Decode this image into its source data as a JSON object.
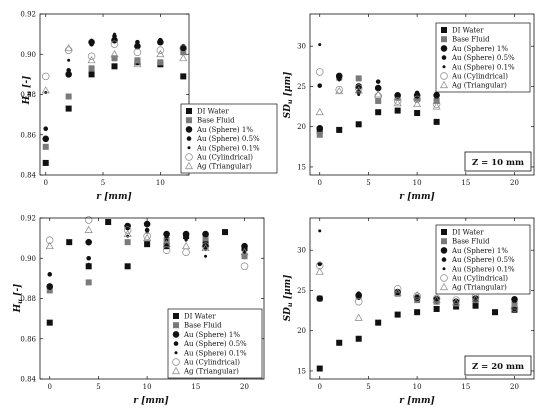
{
  "legend_entries": [
    {
      "name": "DI Water",
      "marker": "square",
      "color": "#111111"
    },
    {
      "name": "Base Fluid",
      "marker": "square",
      "color": "#7a7a7a"
    },
    {
      "name": "Au (Sphere) 1%",
      "marker": "circle-large",
      "color": "#111111"
    },
    {
      "name": "Au (Sphere) 0.5%",
      "marker": "circle-medium",
      "color": "#111111"
    },
    {
      "name": "Au (Sphere) 0.1%",
      "marker": "circle-small",
      "color": "#111111"
    },
    {
      "name": "Au (Cylindrical)",
      "marker": "circle-open",
      "color": "#888888"
    },
    {
      "name": "Ag (Triangular)",
      "marker": "triangle-open",
      "color": "#888888"
    }
  ],
  "chart_data": [
    {
      "type": "scatter",
      "title": "",
      "xlabel": "r [mm]",
      "ylabel": "H_u [-]",
      "ylabel_main": "H",
      "ylabel_sub": "u",
      "ylabel_unit": "[-]",
      "xlim": [
        -0.5,
        12.5
      ],
      "ylim": [
        0.84,
        0.92
      ],
      "xticks": [
        "0",
        "5",
        "10"
      ],
      "xtick_values": [
        0,
        5,
        10
      ],
      "yticks": [
        "0.84",
        "0.86",
        "0.88",
        "0.90",
        "0.92"
      ],
      "ytick_values": [
        0.84,
        0.86,
        0.88,
        0.9,
        0.92
      ],
      "legend_position": "lower-right",
      "annotation": "",
      "series": [
        {
          "name": "DI Water",
          "x": [
            0,
            2,
            4,
            6,
            8,
            10,
            12
          ],
          "y": [
            0.846,
            0.873,
            0.89,
            0.894,
            0.896,
            0.895,
            0.889
          ]
        },
        {
          "name": "Base Fluid",
          "x": [
            0,
            2,
            4,
            6,
            8,
            10,
            12
          ],
          "y": [
            0.854,
            0.879,
            0.893,
            0.898,
            0.897,
            0.896,
            0.901
          ]
        },
        {
          "name": "Au (Sphere) 1%",
          "x": [
            0,
            2,
            4,
            6,
            8,
            10,
            12
          ],
          "y": [
            0.858,
            0.89,
            0.906,
            0.907,
            0.904,
            0.906,
            0.903
          ]
        },
        {
          "name": "Au (Sphere) 0.5%",
          "x": [
            0,
            2,
            4,
            6,
            8,
            10,
            12
          ],
          "y": [
            0.863,
            0.892,
            0.905,
            0.909,
            0.906,
            0.907,
            0.904
          ]
        },
        {
          "name": "Au (Sphere) 0.1%",
          "x": [
            0,
            2,
            4,
            6,
            8,
            10,
            12
          ],
          "y": [
            0.881,
            0.897,
            0.907,
            0.91,
            0.905,
            0.906,
            0.904
          ]
        },
        {
          "name": "Au (Cylindrical)",
          "x": [
            0,
            2,
            4,
            6,
            8,
            10,
            12
          ],
          "y": [
            0.889,
            0.902,
            0.899,
            0.905,
            0.901,
            0.902,
            0.903
          ]
        },
        {
          "name": "Ag (Triangular)",
          "x": [
            0,
            2,
            4,
            6,
            8,
            10,
            12
          ],
          "y": [
            0.882,
            0.903,
            0.897,
            0.9,
            0.895,
            0.9,
            0.898
          ]
        }
      ]
    },
    {
      "type": "scatter",
      "title": "",
      "xlabel": "r [mm]",
      "ylabel": "SD_u [μm]",
      "ylabel_main": "SD",
      "ylabel_sub": "u",
      "ylabel_unit": "[μm]",
      "xlim": [
        -1,
        22
      ],
      "ylim": [
        14,
        34
      ],
      "xticks": [
        "0",
        "5",
        "10",
        "15",
        "20"
      ],
      "xtick_values": [
        0,
        5,
        10,
        15,
        20
      ],
      "yticks": [
        "15",
        "20",
        "25",
        "30"
      ],
      "ytick_values": [
        15,
        20,
        25,
        30
      ],
      "legend_position": "right",
      "annotation": "Z = 10 mm",
      "series": [
        {
          "name": "DI Water",
          "x": [
            0,
            2,
            4,
            6,
            8,
            10,
            12
          ],
          "y": [
            19.5,
            19.6,
            20.3,
            21.8,
            22.0,
            21.7,
            20.6
          ]
        },
        {
          "name": "Base Fluid",
          "x": [
            0,
            2,
            4,
            6,
            8,
            10,
            12
          ],
          "y": [
            19.0,
            26.1,
            26.0,
            23.2,
            23.6,
            23.5,
            23.2
          ]
        },
        {
          "name": "Au (Sphere) 1%",
          "x": [
            0,
            2,
            4,
            6,
            8,
            10,
            12
          ],
          "y": [
            19.8,
            26.3,
            25.0,
            24.8,
            23.9,
            23.9,
            23.9
          ]
        },
        {
          "name": "Au (Sphere) 0.5%",
          "x": [
            0,
            2,
            4,
            6,
            8,
            10,
            12
          ],
          "y": [
            25.1,
            26.0,
            24.3,
            25.6,
            24.0,
            24.2,
            24.1
          ]
        },
        {
          "name": "Au (Sphere) 0.1%",
          "x": [
            0,
            2,
            4,
            6,
            8,
            10,
            12
          ],
          "y": [
            30.2,
            25.8,
            24.0,
            25.0,
            23.8,
            24.0,
            23.9
          ]
        },
        {
          "name": "Au (Cylindrical)",
          "x": [
            0,
            2,
            4,
            6,
            8,
            10,
            12
          ],
          "y": [
            26.8,
            24.6,
            24.8,
            23.8,
            23.2,
            23.4,
            22.8
          ]
        },
        {
          "name": "Ag (Triangular)",
          "x": [
            0,
            2,
            4,
            6,
            8,
            10,
            12
          ],
          "y": [
            21.8,
            24.4,
            24.5,
            24.0,
            22.9,
            22.8,
            22.5
          ]
        }
      ]
    },
    {
      "type": "scatter",
      "title": "",
      "xlabel": "r [mm]",
      "ylabel": "H_u [-]",
      "ylabel_main": "H",
      "ylabel_sub": "u",
      "ylabel_unit": "[-]",
      "xlim": [
        -1,
        22
      ],
      "ylim": [
        0.84,
        0.92
      ],
      "xticks": [
        "0",
        "5",
        "10",
        "15",
        "20"
      ],
      "xtick_values": [
        0,
        5,
        10,
        15,
        20
      ],
      "yticks": [
        "0.84",
        "0.86",
        "0.88",
        "0.90",
        "0.92"
      ],
      "ytick_values": [
        0.84,
        0.86,
        0.88,
        0.9,
        0.92
      ],
      "legend_position": "lower-right",
      "annotation": "",
      "series": [
        {
          "name": "DI Water",
          "x": [
            0,
            2,
            4,
            6,
            8,
            10,
            12,
            14,
            16,
            18,
            20
          ],
          "y": [
            0.868,
            0.908,
            0.896,
            0.918,
            0.896,
            0.907,
            0.906,
            0.911,
            0.907,
            0.913,
            0.905
          ]
        },
        {
          "name": "Base Fluid",
          "x": [
            0,
            4,
            8,
            12,
            16,
            20
          ],
          "y": [
            0.884,
            0.888,
            0.908,
            0.909,
            0.91,
            0.901
          ]
        },
        {
          "name": "Au (Sphere) 1%",
          "x": [
            0,
            4,
            8,
            10,
            12,
            14,
            16,
            20
          ],
          "y": [
            0.886,
            0.908,
            0.916,
            0.917,
            0.912,
            0.912,
            0.912,
            0.906
          ]
        },
        {
          "name": "Au (Sphere) 0.5%",
          "x": [
            0,
            4,
            8,
            10,
            12,
            14,
            16,
            20
          ],
          "y": [
            0.892,
            0.9,
            0.915,
            0.914,
            0.911,
            0.91,
            0.905,
            0.905
          ]
        },
        {
          "name": "Au (Sphere) 0.1%",
          "x": [
            0,
            4,
            8,
            10,
            12,
            14,
            16,
            20
          ],
          "y": [
            0.885,
            0.897,
            0.911,
            0.913,
            0.909,
            0.909,
            0.901,
            0.903
          ]
        },
        {
          "name": "Au (Cylindrical)",
          "x": [
            0,
            4,
            8,
            10,
            12,
            14,
            16,
            20
          ],
          "y": [
            0.909,
            0.919,
            0.914,
            0.911,
            0.904,
            0.903,
            0.906,
            0.896
          ]
        },
        {
          "name": "Ag (Triangular)",
          "x": [
            0,
            4,
            8,
            10,
            12,
            14,
            16,
            20
          ],
          "y": [
            0.906,
            0.914,
            0.912,
            0.91,
            0.907,
            0.906,
            0.905,
            0.903
          ]
        }
      ]
    },
    {
      "type": "scatter",
      "title": "",
      "xlabel": "r [mm]",
      "ylabel": "SD_u [μm]",
      "ylabel_main": "SD",
      "ylabel_sub": "u",
      "ylabel_unit": "[μm]",
      "xlim": [
        -1,
        22
      ],
      "ylim": [
        14,
        34
      ],
      "xticks": [
        "0",
        "5",
        "10",
        "15",
        "20"
      ],
      "xtick_values": [
        0,
        5,
        10,
        15,
        20
      ],
      "yticks": [
        "15",
        "20",
        "25",
        "30"
      ],
      "ytick_values": [
        15,
        20,
        25,
        30
      ],
      "legend_position": "right",
      "annotation": "Z = 20 mm",
      "series": [
        {
          "name": "DI Water",
          "x": [
            0,
            2,
            4,
            6,
            8,
            10,
            12,
            14,
            16,
            18,
            20
          ],
          "y": [
            15.3,
            18.5,
            19.0,
            21.0,
            22.0,
            22.3,
            22.7,
            23.0,
            23.1,
            22.3,
            22.6
          ]
        },
        {
          "name": "Base Fluid",
          "x": [
            0,
            4,
            8,
            10,
            12,
            14,
            16,
            20
          ],
          "y": [
            24.0,
            24.3,
            24.6,
            23.8,
            23.6,
            23.4,
            23.8,
            23.3
          ]
        },
        {
          "name": "Au (Sphere) 1%",
          "x": [
            0,
            4,
            8,
            10,
            12,
            14,
            16,
            20
          ],
          "y": [
            24.0,
            24.4,
            24.8,
            24.1,
            23.9,
            23.6,
            24.0,
            23.9
          ]
        },
        {
          "name": "Au (Sphere) 0.5%",
          "x": [
            0,
            4,
            8,
            10,
            12,
            14,
            16,
            20
          ],
          "y": [
            28.3,
            24.6,
            24.9,
            24.2,
            23.7,
            23.5,
            24.0,
            23.8
          ]
        },
        {
          "name": "Au (Sphere) 0.1%",
          "x": [
            0,
            4,
            8,
            10,
            12,
            14,
            16,
            20
          ],
          "y": [
            32.4,
            24.0,
            24.6,
            24.0,
            23.6,
            23.4,
            23.7,
            23.6
          ]
        },
        {
          "name": "Au (Cylindrical)",
          "x": [
            0,
            4,
            8,
            10,
            12,
            14,
            16,
            20
          ],
          "y": [
            28.1,
            23.6,
            25.2,
            24.3,
            24.0,
            23.8,
            24.2,
            22.8
          ]
        },
        {
          "name": "Ag (Triangular)",
          "x": [
            0,
            4,
            8,
            10,
            12,
            14,
            16,
            20
          ],
          "y": [
            27.3,
            21.6,
            24.7,
            24.4,
            23.8,
            23.5,
            23.9,
            23.0
          ]
        }
      ]
    }
  ]
}
